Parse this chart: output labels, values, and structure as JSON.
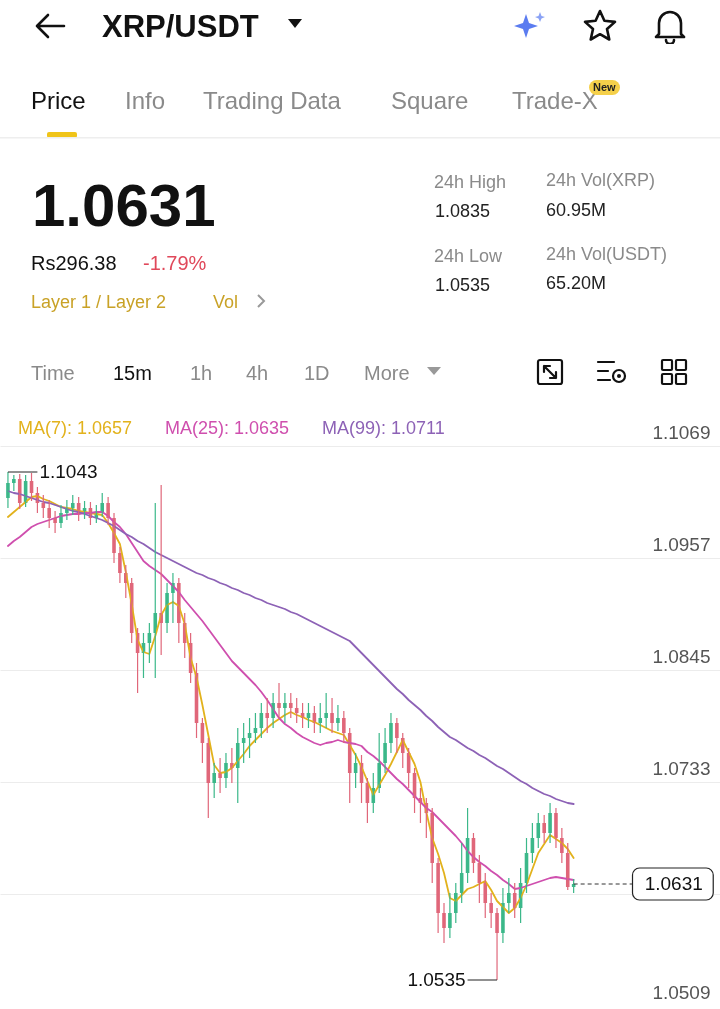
{
  "chart_data": {
    "type": "candlestick",
    "title": "XRP/USDT",
    "categories": [
      null,
      null,
      null,
      null,
      null,
      null,
      null,
      null,
      null,
      null,
      null,
      null,
      null,
      null,
      null,
      null,
      null,
      null,
      null,
      null,
      null,
      null,
      null,
      null,
      null,
      null,
      null,
      null,
      null,
      null,
      null,
      null,
      null,
      null,
      null,
      null,
      null,
      null,
      null,
      null,
      null,
      null,
      null,
      null,
      null,
      null,
      null,
      null,
      null,
      null,
      null,
      null,
      null,
      null,
      null,
      null,
      null,
      null,
      null,
      null,
      null,
      null,
      null,
      null,
      null,
      null,
      null,
      null,
      null,
      null,
      null,
      null,
      null,
      null,
      null,
      null,
      null,
      null,
      null,
      null,
      null,
      null,
      null,
      null,
      null,
      null,
      null,
      null,
      null,
      null,
      null,
      null,
      null,
      null,
      null,
      null,
      null
    ],
    "ohlc": [
      [
        1.1017,
        1.1043,
        1.1007,
        1.1032
      ],
      [
        1.1032,
        1.104,
        1.1024,
        1.1036
      ],
      [
        1.1036,
        1.1041,
        1.1006,
        1.1012
      ],
      [
        1.1012,
        1.104,
        1.1008,
        1.1034
      ],
      [
        1.1034,
        1.1042,
        1.1014,
        1.1022
      ],
      [
        1.1022,
        1.1028,
        1.1002,
        1.1012
      ],
      [
        1.1012,
        1.102,
        1.0997,
        1.1007
      ],
      [
        1.1007,
        1.1015,
        1.0987,
        1.0997
      ],
      [
        1.0997,
        1.1004,
        1.0982,
        1.0992
      ],
      [
        1.0992,
        1.101,
        1.0987,
        1.1002
      ],
      [
        1.1002,
        1.1015,
        1.0995,
        1.1007
      ],
      [
        1.1007,
        1.102,
        1.1,
        1.1012
      ],
      [
        1.1012,
        1.1018,
        1.0994,
        1.1002
      ],
      [
        1.1002,
        1.1014,
        1.0996,
        1.1007
      ],
      [
        1.1007,
        1.1013,
        1.099,
        1.0997
      ],
      [
        1.0997,
        1.101,
        1.0992,
        1.1002
      ],
      [
        1.1002,
        1.1022,
        1.0998,
        1.1012
      ],
      [
        1.1012,
        1.1018,
        1.099,
        1.0997
      ],
      [
        1.0997,
        1.1002,
        1.0952,
        1.0962
      ],
      [
        1.0962,
        1.0968,
        1.0932,
        1.0942
      ],
      [
        1.0942,
        1.095,
        1.0917,
        1.0932
      ],
      [
        1.0932,
        1.0937,
        1.0872,
        1.0882
      ],
      [
        1.0882,
        1.0887,
        1.0822,
        1.0862
      ],
      [
        1.0862,
        1.0882,
        1.0837,
        1.0872
      ],
      [
        1.0872,
        1.0892,
        1.0852,
        1.0882
      ],
      [
        1.0882,
        1.1012,
        1.0837,
        1.0902
      ],
      [
        1.0902,
        1.103,
        1.086,
        1.0892
      ],
      [
        1.0892,
        1.0932,
        1.0882,
        1.0922
      ],
      [
        1.0922,
        1.0942,
        1.0892,
        1.0932
      ],
      [
        1.0932,
        1.0937,
        1.0872,
        1.0892
      ],
      [
        1.0892,
        1.0902,
        1.0857,
        1.0872
      ],
      [
        1.0872,
        1.0882,
        1.0832,
        1.0842
      ],
      [
        1.0842,
        1.0852,
        1.0777,
        1.0792
      ],
      [
        1.0792,
        1.0797,
        1.0752,
        1.0772
      ],
      [
        1.0772,
        1.0777,
        1.0697,
        1.0732
      ],
      [
        1.0732,
        1.0752,
        1.0717,
        1.0742
      ],
      [
        1.0742,
        1.0757,
        1.0722,
        1.0737
      ],
      [
        1.0737,
        1.0762,
        1.0727,
        1.0752
      ],
      [
        1.0752,
        1.0767,
        1.0732,
        1.0747
      ],
      [
        1.0747,
        1.0787,
        1.0712,
        1.0772
      ],
      [
        1.0772,
        1.0792,
        1.0752,
        1.0777
      ],
      [
        1.0777,
        1.0797,
        1.0757,
        1.0782
      ],
      [
        1.0782,
        1.0802,
        1.0772,
        1.0787
      ],
      [
        1.0787,
        1.0812,
        1.0777,
        1.0802
      ],
      [
        1.0802,
        1.0817,
        1.0782,
        1.0797
      ],
      [
        1.0797,
        1.0822,
        1.0787,
        1.0812
      ],
      [
        1.0812,
        1.0832,
        1.0797,
        1.0807
      ],
      [
        1.0807,
        1.0822,
        1.0792,
        1.0812
      ],
      [
        1.0812,
        1.0822,
        1.0797,
        1.0807
      ],
      [
        1.0807,
        1.0817,
        1.0792,
        1.0802
      ],
      [
        1.0802,
        1.0812,
        1.0787,
        1.0797
      ],
      [
        1.0797,
        1.0812,
        1.0787,
        1.0802
      ],
      [
        1.0802,
        1.0809,
        1.0782,
        1.0792
      ],
      [
        1.0792,
        1.0812,
        1.0782,
        1.0797
      ],
      [
        1.0797,
        1.0822,
        1.0787,
        1.0802
      ],
      [
        1.0802,
        1.0817,
        1.0782,
        1.0792
      ],
      [
        1.0792,
        1.081,
        1.0784,
        1.0797
      ],
      [
        1.0797,
        1.0804,
        1.0772,
        1.0782
      ],
      [
        1.0782,
        1.0787,
        1.0712,
        1.0742
      ],
      [
        1.0742,
        1.0762,
        1.0727,
        1.0752
      ],
      [
        1.0752,
        1.076,
        1.0712,
        1.0732
      ],
      [
        1.0732,
        1.0737,
        1.0692,
        1.0712
      ],
      [
        1.0712,
        1.0742,
        1.0702,
        1.0727
      ],
      [
        1.0727,
        1.0782,
        1.0722,
        1.0752
      ],
      [
        1.0752,
        1.0787,
        1.0742,
        1.0772
      ],
      [
        1.0772,
        1.0802,
        1.0762,
        1.0792
      ],
      [
        1.0792,
        1.0797,
        1.0762,
        1.0777
      ],
      [
        1.0777,
        1.0782,
        1.0747,
        1.0762
      ],
      [
        1.0762,
        1.0767,
        1.0727,
        1.0742
      ],
      [
        1.0742,
        1.0747,
        1.0702,
        1.0717
      ],
      [
        1.0717,
        1.0727,
        1.0692,
        1.0712
      ],
      [
        1.0712,
        1.0717,
        1.0677,
        1.0702
      ],
      [
        1.0702,
        1.0707,
        1.0632,
        1.0652
      ],
      [
        1.0652,
        1.0657,
        1.0582,
        1.0602
      ],
      [
        1.0602,
        1.0612,
        1.0572,
        1.0587
      ],
      [
        1.0587,
        1.0622,
        1.0577,
        1.0602
      ],
      [
        1.0602,
        1.0632,
        1.0592,
        1.0622
      ],
      [
        1.0622,
        1.0672,
        1.0612,
        1.0642
      ],
      [
        1.0642,
        1.0707,
        1.0632,
        1.0677
      ],
      [
        1.0677,
        1.0682,
        1.0642,
        1.0652
      ],
      [
        1.0652,
        1.066,
        1.0612,
        1.0632
      ],
      [
        1.0632,
        1.0642,
        1.0597,
        1.0612
      ],
      [
        1.0612,
        1.0622,
        1.0587,
        1.0602
      ],
      [
        1.0602,
        1.0607,
        1.0535,
        1.0582
      ],
      [
        1.0582,
        1.0627,
        1.0572,
        1.0612
      ],
      [
        1.0612,
        1.0637,
        1.0602,
        1.0622
      ],
      [
        1.0622,
        1.0632,
        1.0597,
        1.0607
      ],
      [
        1.0607,
        1.0647,
        1.0592,
        1.0632
      ],
      [
        1.0632,
        1.0677,
        1.0622,
        1.0662
      ],
      [
        1.0662,
        1.0692,
        1.0652,
        1.0677
      ],
      [
        1.0677,
        1.0702,
        1.0667,
        1.0692
      ],
      [
        1.0692,
        1.07,
        1.0672,
        1.0682
      ],
      [
        1.0682,
        1.0712,
        1.0672,
        1.0702
      ],
      [
        1.0702,
        1.0707,
        1.0667,
        1.0677
      ],
      [
        1.0677,
        1.0687,
        1.0652,
        1.0662
      ],
      [
        1.0662,
        1.0672,
        1.0625,
        1.0628
      ],
      [
        1.0628,
        1.0636,
        1.0622,
        1.0631
      ]
    ],
    "series": [
      {
        "name": "MA(7): 1.0657",
        "type": "line",
        "color": "#e2b21c",
        "values": [
          1.0998,
          1.1003,
          1.1008,
          1.1013,
          1.1018,
          1.1019,
          1.1016,
          1.1014,
          1.1011,
          1.1008,
          1.1007,
          1.1006,
          1.1004,
          1.1003,
          1.1002,
          1.1001,
          1.1,
          1.0992,
          1.0982,
          1.0971,
          1.0943,
          1.0911,
          1.0875,
          1.0863,
          1.0861,
          1.0879,
          1.09,
          1.091,
          1.0913,
          1.0909,
          1.0891,
          1.0857,
          1.0838,
          1.081,
          1.078,
          1.075,
          1.0742,
          1.0743,
          1.0747,
          1.0754,
          1.0761,
          1.0769,
          1.0775,
          1.0781,
          1.0787,
          1.0792,
          1.0796,
          1.08,
          1.0803,
          1.08,
          1.0798,
          1.0795,
          1.0793,
          1.079,
          1.0787,
          1.0784,
          1.0782,
          1.078,
          1.077,
          1.076,
          1.0748,
          1.0734,
          1.072,
          1.073,
          1.074,
          1.0751,
          1.0763,
          1.0775,
          1.0763,
          1.0751,
          1.0733,
          1.0703,
          1.0677,
          1.0661,
          1.0642,
          1.0617,
          1.0614,
          1.062,
          1.0626,
          1.0628,
          1.0631,
          1.0634,
          1.0625,
          1.0614,
          1.0608,
          1.0602,
          1.0607,
          1.0617,
          1.063,
          1.0646,
          1.0662,
          1.0671,
          1.068,
          1.0676,
          1.0672,
          1.0666,
          1.0657
        ]
      },
      {
        "name": "MA(25): 1.0635",
        "type": "line",
        "color": "#cf4fae",
        "values": [
          1.0969,
          1.0974,
          1.0978,
          1.0983,
          1.0988,
          1.0991,
          1.0993,
          1.0995,
          1.0997,
          1.0999,
          1.1,
          1.1001,
          1.1001,
          1.1002,
          1.1002,
          1.1003,
          1.1003,
          1.0999,
          1.0993,
          1.0988,
          1.0981,
          1.0972,
          1.0963,
          1.0954,
          1.0949,
          1.0945,
          1.0941,
          1.0935,
          1.0929,
          1.0923,
          1.0915,
          1.0908,
          1.0901,
          1.0894,
          1.0886,
          1.0878,
          1.087,
          1.0862,
          1.0854,
          1.0848,
          1.0842,
          1.0836,
          1.083,
          1.0823,
          1.0815,
          1.0806,
          1.0797,
          1.0791,
          1.0787,
          1.0782,
          1.0778,
          1.0775,
          1.0772,
          1.077,
          1.0772,
          1.0773,
          1.0775,
          1.0773,
          1.0772,
          1.0771,
          1.0769,
          1.0763,
          1.0759,
          1.0754,
          1.0748,
          1.0742,
          1.0736,
          1.0731,
          1.0725,
          1.0719,
          1.0713,
          1.0707,
          1.0703,
          1.0697,
          1.0691,
          1.0685,
          1.0679,
          1.0672,
          1.0664,
          1.0658,
          1.0653,
          1.0649,
          1.0644,
          1.064,
          1.0635,
          1.0631,
          1.0626,
          1.0627,
          1.0629,
          1.0631,
          1.0633,
          1.0635,
          1.0637,
          1.0638,
          1.0637,
          1.0636,
          1.0635
        ]
      },
      {
        "name": "MA(99): 1.0711",
        "type": "line",
        "color": "#8d62b6",
        "values": [
          1.1024,
          1.1022,
          1.1021,
          1.1019,
          1.1017,
          1.1015,
          1.1013,
          1.1012,
          1.101,
          1.1008,
          1.1006,
          1.1004,
          1.1003,
          1.1001,
          1.0999,
          1.0997,
          1.0995,
          1.0992,
          1.0989,
          1.0985,
          1.0981,
          1.0978,
          1.0974,
          1.0971,
          1.0967,
          1.0963,
          1.096,
          1.0957,
          1.0954,
          1.0951,
          1.0948,
          1.0945,
          1.0942,
          1.094,
          1.0937,
          1.0935,
          1.0932,
          1.093,
          1.0927,
          1.0925,
          1.0922,
          1.092,
          1.0917,
          1.0915,
          1.0912,
          1.091,
          1.0908,
          1.0906,
          1.0903,
          1.0901,
          1.0898,
          1.0895,
          1.0892,
          1.0889,
          1.0886,
          1.0883,
          1.088,
          1.0877,
          1.0874,
          1.0868,
          1.0862,
          1.0856,
          1.085,
          1.0844,
          1.0838,
          1.0832,
          1.0826,
          1.0821,
          1.0815,
          1.081,
          1.0805,
          1.0799,
          1.0794,
          1.0788,
          1.0783,
          1.0778,
          1.0775,
          1.0771,
          1.0767,
          1.0764,
          1.076,
          1.0757,
          1.0753,
          1.0749,
          1.0746,
          1.0742,
          1.0738,
          1.0734,
          1.0731,
          1.0727,
          1.0724,
          1.0721,
          1.0719,
          1.0716,
          1.0714,
          1.0712,
          1.0711
        ]
      }
    ],
    "ylim": [
      1.0509,
      1.1069
    ],
    "yticks": [
      1.1069,
      1.0957,
      1.0845,
      1.0733,
      {
        "value": 1.0621,
        "label": null
      },
      1.0509
    ],
    "grid": "y",
    "legend": "top",
    "tick_labels": "y",
    "ref_lines": [
      {
        "axis": "y",
        "value": 1.0631,
        "label": "1.0631",
        "line_style": "dashed"
      }
    ],
    "annotations": [
      "Price",
      "Info",
      "Trading Data",
      "Square",
      "Trade-X",
      "New",
      "1.0631",
      "Rs296.38",
      "-1.79%",
      "Layer 1 / Layer 2",
      "Vol",
      "24h High",
      "1.0835",
      "24h Low",
      "1.0535",
      "24h Vol(XRP)",
      "60.95M",
      "24h Vol(USDT)",
      "65.20M",
      "Time",
      "15m",
      "1h",
      "4h",
      "1D",
      "More",
      "1.1043",
      "1.0535"
    ]
  }
}
